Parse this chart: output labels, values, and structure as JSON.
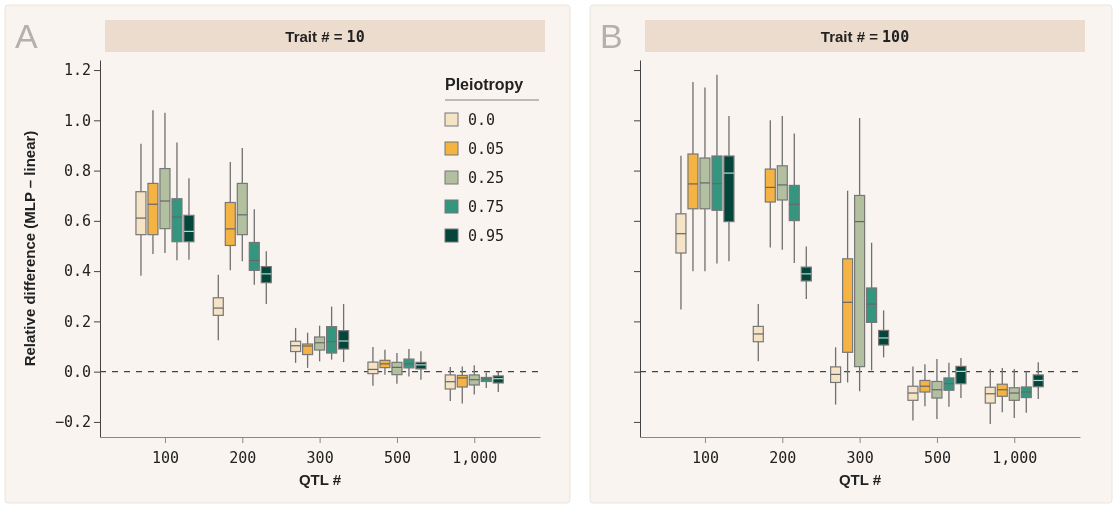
{
  "chart_data": [
    {
      "type": "box",
      "title": "Trait # = 10",
      "xlabel": "QTL #",
      "ylabel": "Relative difference (MLP – linear)",
      "annotations": [
        "A"
      ],
      "categories": [
        "100",
        "200",
        "300",
        "500",
        "1,000"
      ],
      "ylim": [
        -0.26,
        1.24
      ],
      "yticks": [
        {
          "value": -0.2,
          "label": "−0.2"
        },
        {
          "value": 0,
          "label": "0.0"
        },
        {
          "value": 0.2,
          "label": "0.2"
        },
        {
          "value": 0.4,
          "label": "0.4"
        },
        {
          "value": 0.6,
          "label": "0.6"
        },
        {
          "value": 0.8,
          "label": "0.8"
        },
        {
          "value": 1.0,
          "label": "1.0"
        },
        {
          "value": 1.2,
          "label": "1.2"
        }
      ],
      "ref_lines": [
        {
          "axis": "y",
          "value": 0,
          "line_style": "dashed",
          "color": "#444444"
        }
      ],
      "legend": "top right",
      "legend_title": "Pleiotropy",
      "series": [
        {
          "name": "0.0",
          "color": "#f5e3c6",
          "boxes": [
            {
              "low": 0.382,
              "q1": 0.545,
              "median": 0.611,
              "q3": 0.716,
              "high": 0.907
            },
            {
              "low": 0.125,
              "q1": 0.224,
              "median": 0.253,
              "q3": 0.294,
              "high": 0.386
            },
            {
              "low": 0.035,
              "q1": 0.08,
              "median": 0.103,
              "q3": 0.121,
              "high": 0.174
            },
            {
              "low": -0.056,
              "q1": -0.008,
              "median": 0.009,
              "q3": 0.038,
              "high": 0.098
            },
            {
              "low": -0.117,
              "q1": -0.069,
              "median": -0.04,
              "q3": -0.013,
              "high": 0.019
            }
          ]
        },
        {
          "name": "0.05",
          "color": "#f4b342",
          "boxes": [
            {
              "low": 0.468,
              "q1": 0.545,
              "median": 0.666,
              "q3": 0.749,
              "high": 1.04
            },
            {
              "low": 0.403,
              "q1": 0.502,
              "median": 0.568,
              "q3": 0.673,
              "high": 0.834
            },
            {
              "low": 0.015,
              "q1": 0.068,
              "median": 0.102,
              "q3": 0.11,
              "high": 0.155
            },
            {
              "low": -0.012,
              "q1": 0.016,
              "median": 0.031,
              "q3": 0.045,
              "high": 0.087
            },
            {
              "low": -0.127,
              "q1": -0.061,
              "median": -0.025,
              "q3": -0.015,
              "high": 0.021
            }
          ]
        },
        {
          "name": "0.25",
          "color": "#b3c0a0",
          "boxes": [
            {
              "low": 0.472,
              "q1": 0.569,
              "median": 0.679,
              "q3": 0.808,
              "high": 1.03
            },
            {
              "low": 0.439,
              "q1": 0.545,
              "median": 0.624,
              "q3": 0.749,
              "high": 0.89
            },
            {
              "low": 0.041,
              "q1": 0.086,
              "median": 0.115,
              "q3": 0.138,
              "high": 0.183
            },
            {
              "low": -0.048,
              "q1": -0.012,
              "median": 0.017,
              "q3": 0.037,
              "high": 0.074
            },
            {
              "low": -0.091,
              "q1": -0.053,
              "median": -0.032,
              "q3": -0.013,
              "high": 0.025
            }
          ]
        },
        {
          "name": "0.75",
          "color": "#35967f",
          "boxes": [
            {
              "low": 0.443,
              "q1": 0.517,
              "median": 0.615,
              "q3": 0.688,
              "high": 0.912
            },
            {
              "low": 0.346,
              "q1": 0.403,
              "median": 0.442,
              "q3": 0.514,
              "high": 0.646
            },
            {
              "low": 0.048,
              "q1": 0.074,
              "median": 0.119,
              "q3": 0.179,
              "high": 0.259
            },
            {
              "low": -0.019,
              "q1": 0.015,
              "median": 0.031,
              "q3": 0.05,
              "high": 0.09
            },
            {
              "low": -0.065,
              "q1": -0.039,
              "median": -0.029,
              "q3": -0.023,
              "high": -0.003
            }
          ]
        },
        {
          "name": "0.95",
          "color": "#03473b",
          "boxes": [
            {
              "low": 0.445,
              "q1": 0.517,
              "median": 0.558,
              "q3": 0.622,
              "high": 0.77
            },
            {
              "low": 0.269,
              "q1": 0.354,
              "median": 0.389,
              "q3": 0.418,
              "high": 0.479
            },
            {
              "low": 0.038,
              "q1": 0.09,
              "median": 0.122,
              "q3": 0.163,
              "high": 0.269
            },
            {
              "low": -0.032,
              "q1": 0.011,
              "median": 0.027,
              "q3": 0.037,
              "high": 0.081
            },
            {
              "low": -0.081,
              "q1": -0.045,
              "median": -0.028,
              "q3": -0.017,
              "high": 0.0
            }
          ]
        }
      ]
    },
    {
      "type": "box",
      "title": "Trait # = 100",
      "xlabel": "QTL #",
      "annotations": [
        "B"
      ],
      "tick_labels": "x",
      "categories": [
        "100",
        "200",
        "300",
        "500",
        "1,000"
      ],
      "ylim": [
        -0.26,
        1.24
      ],
      "yticks": [
        {
          "value": -0.2,
          "label": null
        },
        {
          "value": 0,
          "label": null
        },
        {
          "value": 0.2,
          "label": null
        },
        {
          "value": 0.4,
          "label": null
        },
        {
          "value": 0.6,
          "label": null
        },
        {
          "value": 0.8,
          "label": null
        },
        {
          "value": 1.0,
          "label": null
        },
        {
          "value": 1.2,
          "label": null
        }
      ],
      "ref_lines": [
        {
          "axis": "y",
          "value": 0,
          "line_style": "dashed",
          "color": "#444444"
        }
      ],
      "series": [
        {
          "color": "#f5e3c6",
          "boxes": [
            {
              "low": 0.247,
              "q1": 0.472,
              "median": 0.549,
              "q3": 0.628,
              "high": 0.859
            },
            {
              "low": 0.041,
              "q1": 0.119,
              "median": 0.15,
              "q3": 0.18,
              "high": 0.269
            },
            {
              "low": -0.131,
              "q1": -0.043,
              "median": -0.011,
              "q3": 0.019,
              "high": 0.097
            },
            {
              "low": -0.194,
              "q1": -0.114,
              "median": -0.085,
              "q3": -0.058,
              "high": 0.021
            },
            {
              "low": -0.208,
              "q1": -0.125,
              "median": -0.088,
              "q3": -0.062,
              "high": 0.011
            }
          ]
        },
        {
          "color": "#f4b342",
          "boxes": [
            {
              "low": 0.399,
              "q1": 0.648,
              "median": 0.747,
              "q3": 0.866,
              "high": 1.152
            },
            {
              "low": 0.494,
              "q1": 0.675,
              "median": 0.733,
              "q3": 0.806,
              "high": 1.0
            },
            {
              "low": -0.043,
              "q1": 0.077,
              "median": 0.276,
              "q3": 0.449,
              "high": 0.72
            },
            {
              "low": -0.138,
              "q1": -0.081,
              "median": -0.058,
              "q3": -0.035,
              "high": 0.029
            },
            {
              "low": -0.162,
              "q1": -0.098,
              "median": -0.072,
              "q3": -0.05,
              "high": 0.015
            }
          ]
        },
        {
          "color": "#b3c0a0",
          "boxes": [
            {
              "low": 0.399,
              "q1": 0.648,
              "median": 0.751,
              "q3": 0.85,
              "high": 1.131
            },
            {
              "low": 0.485,
              "q1": 0.683,
              "median": 0.743,
              "q3": 0.819,
              "high": 1.017
            },
            {
              "low": -0.078,
              "q1": 0.02,
              "median": 0.597,
              "q3": 0.701,
              "high": 1.009
            },
            {
              "low": -0.188,
              "q1": -0.105,
              "median": -0.072,
              "q3": -0.039,
              "high": 0.05
            },
            {
              "low": -0.184,
              "q1": -0.114,
              "median": -0.085,
              "q3": -0.064,
              "high": 0.011
            }
          ]
        },
        {
          "color": "#35967f",
          "boxes": [
            {
              "low": 0.43,
              "q1": 0.642,
              "median": 0.748,
              "q3": 0.858,
              "high": 1.181
            },
            {
              "low": 0.432,
              "q1": 0.601,
              "median": 0.666,
              "q3": 0.741,
              "high": 0.948
            },
            {
              "low": 0.005,
              "q1": 0.196,
              "median": 0.269,
              "q3": 0.333,
              "high": 0.513
            },
            {
              "low": -0.14,
              "q1": -0.074,
              "median": -0.048,
              "q3": -0.025,
              "high": 0.035
            },
            {
              "low": -0.164,
              "q1": -0.103,
              "median": -0.081,
              "q3": -0.061,
              "high": 0.001
            }
          ]
        },
        {
          "color": "#03473b",
          "boxes": [
            {
              "low": 0.439,
              "q1": 0.597,
              "median": 0.79,
              "q3": 0.858,
              "high": 1.017
            },
            {
              "low": 0.289,
              "q1": 0.361,
              "median": 0.389,
              "q3": 0.416,
              "high": 0.498
            },
            {
              "low": 0.057,
              "q1": 0.106,
              "median": 0.134,
              "q3": 0.164,
              "high": 0.244
            },
            {
              "low": -0.105,
              "q1": -0.048,
              "median": 0.001,
              "q3": 0.021,
              "high": 0.054
            },
            {
              "low": -0.109,
              "q1": -0.06,
              "median": -0.035,
              "q3": -0.013,
              "high": 0.037
            }
          ]
        }
      ]
    }
  ]
}
